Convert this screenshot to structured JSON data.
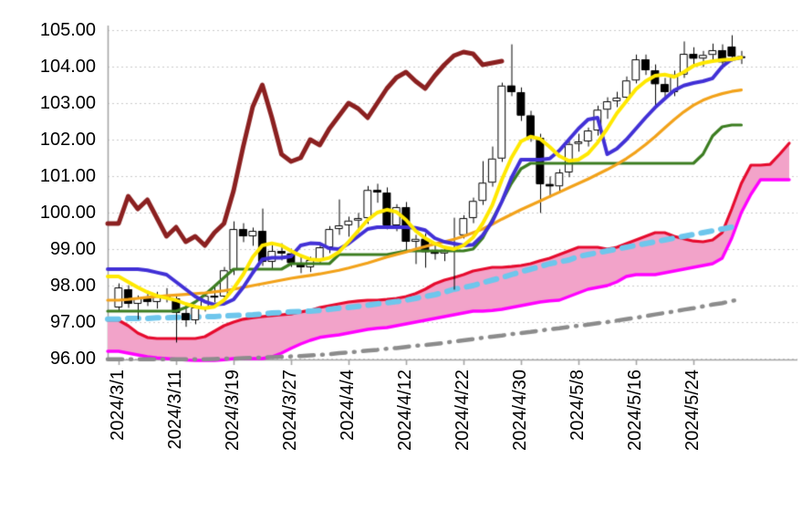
{
  "chart_data": {
    "type": "candlestick",
    "title": "",
    "grid": true,
    "legend": "none",
    "y_axis": {
      "min": 96,
      "max": 105,
      "step": 1,
      "tick_labels": [
        "105.00",
        "104.00",
        "103.00",
        "102.00",
        "101.00",
        "100.00",
        "99.00",
        "98.00",
        "97.00",
        "96.00"
      ]
    },
    "x_axis": {
      "tick_labels": [
        "2024/3/1",
        "2024/3/11",
        "2024/3/19",
        "2024/3/27",
        "2024/4/4",
        "2024/4/12",
        "2024/4/22",
        "2024/4/30",
        "2024/5/8",
        "2024/5/16",
        "2024/5/24"
      ],
      "tick_day_index": [
        0,
        6,
        12,
        18,
        24,
        30,
        36,
        42,
        48,
        54,
        60
      ],
      "days_total": 66
    },
    "candles": {
      "up_fill": "#ffffff",
      "down_fill": "#000000",
      "border": "#000000",
      "ohlc": [
        [
          97.4,
          98.05,
          97.3,
          97.95
        ],
        [
          97.9,
          98.0,
          97.4,
          97.5
        ],
        [
          97.5,
          97.72,
          97.08,
          97.65
        ],
        [
          97.65,
          97.85,
          97.45,
          97.55
        ],
        [
          97.55,
          97.82,
          97.38,
          97.75
        ],
        [
          97.75,
          97.92,
          97.55,
          97.65
        ],
        [
          97.65,
          97.72,
          96.45,
          97.25
        ],
        [
          97.25,
          97.45,
          96.88,
          97.05
        ],
        [
          97.05,
          97.45,
          96.95,
          97.4
        ],
        [
          97.4,
          97.8,
          97.3,
          97.72
        ],
        [
          97.72,
          97.95,
          97.55,
          97.68
        ],
        [
          97.7,
          98.5,
          97.62,
          98.42
        ],
        [
          98.42,
          99.75,
          98.3,
          99.55
        ],
        [
          99.55,
          99.7,
          99.2,
          99.35
        ],
        [
          99.35,
          99.58,
          99.1,
          99.5
        ],
        [
          99.5,
          100.1,
          98.55,
          98.65
        ],
        [
          98.65,
          99.1,
          98.48,
          98.95
        ],
        [
          98.95,
          99.15,
          98.7,
          98.88
        ],
        [
          98.88,
          99.0,
          98.52,
          98.62
        ],
        [
          98.62,
          98.8,
          98.35,
          98.5
        ],
        [
          98.5,
          98.78,
          98.38,
          98.7
        ],
        [
          98.7,
          99.12,
          98.6,
          99.05
        ],
        [
          99.05,
          99.62,
          98.9,
          99.55
        ],
        [
          99.55,
          100.35,
          99.4,
          99.65
        ],
        [
          99.65,
          99.88,
          99.35,
          99.78
        ],
        [
          99.78,
          99.98,
          99.45,
          99.85
        ],
        [
          99.85,
          100.72,
          99.7,
          100.62
        ],
        [
          100.62,
          100.78,
          100.28,
          100.55
        ],
        [
          100.55,
          100.68,
          99.55,
          99.65
        ],
        [
          99.65,
          100.22,
          99.5,
          100.15
        ],
        [
          100.15,
          100.28,
          98.95,
          99.2
        ],
        [
          99.2,
          99.38,
          98.6,
          99.28
        ],
        [
          99.28,
          99.42,
          98.5,
          98.92
        ],
        [
          98.92,
          99.12,
          98.72,
          98.88
        ],
        [
          98.88,
          99.08,
          98.68,
          98.98
        ],
        [
          98.98,
          99.85,
          97.9,
          99.02
        ],
        [
          99.38,
          99.92,
          99.3,
          99.85
        ],
        [
          99.85,
          100.4,
          99.72,
          100.32
        ],
        [
          100.32,
          101.4,
          100.22,
          100.82
        ],
        [
          100.82,
          101.8,
          100.72,
          101.48
        ],
        [
          101.48,
          103.55,
          101.4,
          103.48
        ],
        [
          103.48,
          104.6,
          103.2,
          103.3
        ],
        [
          103.3,
          103.42,
          102.52,
          102.66
        ],
        [
          102.66,
          102.78,
          101.95,
          102.05
        ],
        [
          102.05,
          102.15,
          100.0,
          100.78
        ],
        [
          100.78,
          100.98,
          100.42,
          100.72
        ],
        [
          100.72,
          101.18,
          100.55,
          101.1
        ],
        [
          101.1,
          101.95,
          100.98,
          101.88
        ],
        [
          101.88,
          102.15,
          101.68,
          101.95
        ],
        [
          101.95,
          102.32,
          101.82,
          102.25
        ],
        [
          102.25,
          102.92,
          102.12,
          102.82
        ],
        [
          102.82,
          103.15,
          102.58,
          103.05
        ],
        [
          103.05,
          103.3,
          102.9,
          103.15
        ],
        [
          103.15,
          103.72,
          103.02,
          103.62
        ],
        [
          103.62,
          104.32,
          103.55,
          104.2
        ],
        [
          104.2,
          104.32,
          103.78,
          103.9
        ],
        [
          103.9,
          104.05,
          102.85,
          103.52
        ],
        [
          103.52,
          103.68,
          103.18,
          103.3
        ],
        [
          103.3,
          103.88,
          103.2,
          103.78
        ],
        [
          103.78,
          104.68,
          103.7,
          104.35
        ],
        [
          104.35,
          104.52,
          104.05,
          104.22
        ],
        [
          104.22,
          104.42,
          104.0,
          104.32
        ],
        [
          104.32,
          104.62,
          104.12,
          104.45
        ],
        [
          104.45,
          104.6,
          103.95,
          104.12
        ],
        [
          104.55,
          104.85,
          104.15,
          104.28
        ],
        [
          104.28,
          104.42,
          104.08,
          104.25
        ]
      ]
    },
    "cloud": {
      "fill": "#f2a3c9",
      "top_series": "cloud-top-red",
      "bottom_series": "cloud-bottom-magenta"
    },
    "series": [
      {
        "name": "cloud-top-red",
        "color": "#e60b2e",
        "width": 3.2,
        "style": "solid",
        "start": 0,
        "values": [
          97.05,
          96.9,
          96.7,
          96.58,
          96.55,
          96.55,
          96.55,
          96.55,
          96.55,
          96.6,
          96.75,
          96.9,
          97.0,
          97.08,
          97.12,
          97.15,
          97.18,
          97.2,
          97.22,
          97.28,
          97.32,
          97.4,
          97.45,
          97.5,
          97.55,
          97.58,
          97.6,
          97.6,
          97.62,
          97.65,
          97.7,
          97.78,
          97.9,
          98.05,
          98.15,
          98.22,
          98.3,
          98.4,
          98.45,
          98.5,
          98.5,
          98.52,
          98.55,
          98.6,
          98.68,
          98.75,
          98.85,
          98.95,
          99.05,
          99.05,
          99.05,
          99.0,
          99.05,
          99.15,
          99.25,
          99.35,
          99.45,
          99.45,
          99.35,
          99.28,
          99.22,
          99.2,
          99.25,
          99.45,
          100.1,
          100.8,
          101.3,
          101.3,
          101.32,
          101.6,
          101.9
        ]
      },
      {
        "name": "cloud-bottom-magenta",
        "color": "#ff00ff",
        "width": 3.4,
        "style": "solid",
        "start": 0,
        "values": [
          96.2,
          96.15,
          96.1,
          96.05,
          96.02,
          96.0,
          95.98,
          95.96,
          95.95,
          95.95,
          95.95,
          95.97,
          96.0,
          96.0,
          96.0,
          96.0,
          96.05,
          96.15,
          96.28,
          96.4,
          96.5,
          96.58,
          96.62,
          96.65,
          96.7,
          96.75,
          96.8,
          96.83,
          96.85,
          96.9,
          96.95,
          97.0,
          97.05,
          97.1,
          97.15,
          97.2,
          97.25,
          97.3,
          97.3,
          97.32,
          97.35,
          97.4,
          97.45,
          97.5,
          97.55,
          97.58,
          97.6,
          97.7,
          97.8,
          97.9,
          97.95,
          98.0,
          98.1,
          98.25,
          98.3,
          98.3,
          98.3,
          98.35,
          98.4,
          98.45,
          98.5,
          98.55,
          98.6,
          98.75,
          99.3,
          100.0,
          100.5,
          100.9,
          100.9,
          100.9,
          100.9
        ]
      },
      {
        "name": "skyblue-dashed",
        "color": "#6ec6ec",
        "width": 6,
        "style": "dashed",
        "start": 0,
        "values": [
          97.08,
          97.1,
          97.1,
          97.1,
          97.12,
          97.12,
          97.13,
          97.13,
          97.14,
          97.15,
          97.15,
          97.17,
          97.18,
          97.19,
          97.2,
          97.22,
          97.25,
          97.26,
          97.28,
          97.29,
          97.3,
          97.32,
          97.35,
          97.38,
          97.4,
          97.43,
          97.46,
          97.5,
          97.53,
          97.56,
          97.6,
          97.65,
          97.7,
          97.75,
          97.82,
          97.9,
          97.95,
          98.0,
          98.08,
          98.15,
          98.22,
          98.3,
          98.38,
          98.45,
          98.52,
          98.6,
          98.65,
          98.7,
          98.8,
          98.85,
          98.9,
          98.95,
          99.0,
          99.05,
          99.1,
          99.15,
          99.2,
          99.25,
          99.3,
          99.35,
          99.4,
          99.45,
          99.5,
          99.55,
          99.6
        ]
      },
      {
        "name": "gray-dashdot",
        "color": "#8c8c8c",
        "width": 4.5,
        "style": "dashdot",
        "start": 9,
        "values": [
          95.98,
          95.99,
          96.0,
          96.0,
          96.01,
          96.02,
          96.03,
          96.04,
          96.05,
          96.06,
          96.07,
          96.09,
          96.1,
          96.12,
          96.15,
          96.17,
          96.19,
          96.22,
          96.24,
          96.27,
          96.29,
          96.32,
          96.35,
          96.37,
          96.4,
          96.43,
          96.47,
          96.5,
          96.53,
          96.57,
          96.6,
          96.63,
          96.67,
          96.7,
          96.73,
          96.77,
          96.8,
          96.83,
          96.87,
          96.9,
          96.93,
          96.97,
          97.0,
          97.04,
          97.08,
          97.12,
          97.16,
          97.21,
          97.25,
          97.29,
          97.34,
          97.38,
          97.43,
          97.48,
          97.52,
          97.58,
          97.62
        ]
      },
      {
        "name": "green-line",
        "color": "#3c7d21",
        "width": 3.2,
        "style": "solid",
        "start": 0,
        "values": [
          97.3,
          97.3,
          97.3,
          97.3,
          97.3,
          97.3,
          97.3,
          97.4,
          97.55,
          97.75,
          97.98,
          98.22,
          98.45,
          98.45,
          98.45,
          98.45,
          98.45,
          98.45,
          98.6,
          98.6,
          98.6,
          98.6,
          98.6,
          98.85,
          98.85,
          98.85,
          98.85,
          98.85,
          98.85,
          98.9,
          98.95,
          98.95,
          98.95,
          98.95,
          98.95,
          98.95,
          98.95,
          99.0,
          99.3,
          99.8,
          100.3,
          100.8,
          101.2,
          101.35,
          101.35,
          101.35,
          101.35,
          101.35,
          101.35,
          101.35,
          101.35,
          101.35,
          101.35,
          101.35,
          101.35,
          101.35,
          101.35,
          101.35,
          101.35,
          101.35,
          101.35,
          101.6,
          102.1,
          102.35,
          102.4,
          102.4
        ]
      },
      {
        "name": "orange-line",
        "color": "#f2a21a",
        "width": 3.2,
        "style": "solid",
        "start": 0,
        "values": [
          97.6,
          97.62,
          97.65,
          97.68,
          97.7,
          97.72,
          97.74,
          97.76,
          97.78,
          97.8,
          97.83,
          97.86,
          97.9,
          97.95,
          98.0,
          98.05,
          98.1,
          98.15,
          98.2,
          98.24,
          98.28,
          98.32,
          98.37,
          98.42,
          98.48,
          98.55,
          98.62,
          98.7,
          98.78,
          98.85,
          98.92,
          99.0,
          99.07,
          99.14,
          99.2,
          99.27,
          99.35,
          99.45,
          99.55,
          99.68,
          99.82,
          99.95,
          100.08,
          100.2,
          100.32,
          100.44,
          100.56,
          100.68,
          100.8,
          100.92,
          101.05,
          101.18,
          101.32,
          101.48,
          101.66,
          101.86,
          102.08,
          102.32,
          102.55,
          102.76,
          102.94,
          103.08,
          103.18,
          103.26,
          103.32,
          103.36
        ]
      },
      {
        "name": "darkred-lagging-span",
        "color": "#8b2020",
        "width": 5,
        "style": "solid",
        "start": 0,
        "values": [
          99.7,
          100.45,
          100.1,
          100.35,
          99.85,
          99.35,
          99.6,
          99.2,
          99.35,
          99.1,
          99.45,
          99.7,
          100.6,
          101.8,
          102.9,
          103.5,
          102.6,
          101.6,
          101.4,
          101.5,
          102.0,
          101.85,
          102.3,
          102.65,
          103.0,
          102.85,
          102.6,
          103.0,
          103.4,
          103.7,
          103.85,
          103.6,
          103.4,
          103.75,
          104.05,
          104.3,
          104.4,
          104.35,
          104.05,
          104.1,
          104.15
        ]
      },
      {
        "name": "blue-line",
        "color": "#4130d6",
        "width": 4,
        "style": "solid",
        "start": 0,
        "values": [
          98.45,
          98.45,
          98.45,
          98.42,
          98.36,
          98.3,
          98.1,
          97.9,
          97.7,
          97.56,
          97.48,
          97.5,
          97.62,
          97.95,
          98.35,
          98.72,
          98.76,
          98.76,
          98.8,
          99.1,
          99.16,
          99.15,
          99.02,
          99.0,
          99.15,
          99.35,
          99.55,
          99.6,
          99.6,
          99.6,
          99.6,
          99.58,
          99.52,
          99.3,
          99.2,
          99.15,
          99.1,
          99.12,
          99.38,
          99.75,
          100.3,
          100.95,
          101.45,
          101.45,
          101.45,
          101.48,
          101.7,
          102.0,
          102.3,
          102.55,
          102.6,
          101.6,
          101.75,
          102.0,
          102.3,
          102.6,
          102.88,
          103.12,
          103.35,
          103.48,
          103.55,
          103.6,
          103.68,
          104.0,
          104.2,
          104.25
        ]
      },
      {
        "name": "yellow-line",
        "color": "#ffe800",
        "width": 4,
        "style": "solid",
        "start": 0,
        "values": [
          98.25,
          98.1,
          97.95,
          97.82,
          97.72,
          97.66,
          97.6,
          97.5,
          97.42,
          97.38,
          97.42,
          97.6,
          97.92,
          98.3,
          98.78,
          99.1,
          99.16,
          99.1,
          98.95,
          98.82,
          98.72,
          98.7,
          98.76,
          98.92,
          99.2,
          99.5,
          99.8,
          100.0,
          100.08,
          100.02,
          99.8,
          99.5,
          99.3,
          99.15,
          99.05,
          99.0,
          99.1,
          99.32,
          99.7,
          100.2,
          100.9,
          101.5,
          101.95,
          102.08,
          102.02,
          101.8,
          101.55,
          101.42,
          101.45,
          101.62,
          101.92,
          102.3,
          102.72,
          103.05,
          103.38,
          103.6,
          103.75,
          103.78,
          103.72,
          103.85,
          104.02,
          104.1,
          104.15,
          104.18,
          104.2,
          104.25
        ]
      }
    ],
    "style": {
      "grid_color": "#c9c9c9",
      "axis_color": "#a6a6a6",
      "background": "#ffffff",
      "label_color": "#000000"
    }
  }
}
